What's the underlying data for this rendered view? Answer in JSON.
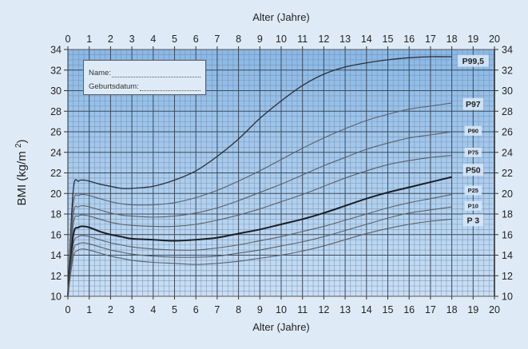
{
  "chart_data": {
    "type": "line",
    "title": "",
    "xlabel": "Alter (Jahre)",
    "ylabel": "BMI (kg/m 2)",
    "xlim": [
      0,
      20
    ],
    "ylim": [
      10,
      34
    ],
    "x_ticks": [
      0,
      1,
      2,
      3,
      4,
      5,
      6,
      7,
      8,
      9,
      10,
      11,
      12,
      13,
      14,
      15,
      16,
      17,
      18,
      19,
      20
    ],
    "y_ticks": [
      10,
      12,
      14,
      16,
      18,
      20,
      22,
      24,
      26,
      28,
      30,
      32,
      34
    ],
    "grid": true,
    "legend_position": "right (inline curve labels)",
    "x": [
      0,
      0.25,
      0.5,
      0.75,
      1,
      1.5,
      2,
      2.5,
      3,
      4,
      5,
      6,
      7,
      8,
      9,
      10,
      11,
      12,
      13,
      14,
      15,
      16,
      17,
      18
    ],
    "series": [
      {
        "name": "P99,5",
        "label_size": "large",
        "color": "#2a2f36",
        "width": 1.3,
        "values": [
          10.5,
          20.3,
          21.2,
          21.3,
          21.2,
          20.9,
          20.7,
          20.5,
          20.5,
          20.7,
          21.3,
          22.2,
          23.6,
          25.3,
          27.3,
          29.0,
          30.5,
          31.6,
          32.3,
          32.7,
          33.0,
          33.2,
          33.3,
          33.3
        ]
      },
      {
        "name": "P97",
        "label_size": "large",
        "color": "#5a6068",
        "width": 1.1,
        "values": [
          10.4,
          18.9,
          19.8,
          19.9,
          19.8,
          19.5,
          19.2,
          19.0,
          18.9,
          18.9,
          19.1,
          19.6,
          20.3,
          21.2,
          22.2,
          23.3,
          24.4,
          25.4,
          26.3,
          27.1,
          27.7,
          28.2,
          28.5,
          28.8
        ]
      },
      {
        "name": "P90",
        "label_size": "small",
        "color": "#5a6068",
        "width": 1.1,
        "values": [
          10.3,
          17.9,
          18.7,
          18.8,
          18.7,
          18.4,
          18.1,
          17.9,
          17.8,
          17.7,
          17.8,
          18.1,
          18.6,
          19.3,
          20.1,
          20.9,
          21.8,
          22.7,
          23.5,
          24.3,
          24.9,
          25.4,
          25.7,
          26.0
        ]
      },
      {
        "name": "P75",
        "label_size": "small",
        "color": "#5a6068",
        "width": 1.1,
        "values": [
          10.2,
          17.0,
          17.8,
          17.9,
          17.8,
          17.5,
          17.2,
          17.0,
          16.9,
          16.8,
          16.8,
          17.0,
          17.4,
          17.9,
          18.5,
          19.2,
          19.9,
          20.7,
          21.5,
          22.2,
          22.8,
          23.2,
          23.5,
          23.7
        ]
      },
      {
        "name": "P50",
        "label_size": "large",
        "color": "#1a1d22",
        "width": 2.0,
        "values": [
          10.1,
          15.9,
          16.7,
          16.8,
          16.7,
          16.3,
          16.0,
          15.8,
          15.6,
          15.5,
          15.4,
          15.5,
          15.7,
          16.1,
          16.5,
          17.0,
          17.5,
          18.1,
          18.8,
          19.5,
          20.1,
          20.6,
          21.1,
          21.6
        ]
      },
      {
        "name": "P25",
        "label_size": "small",
        "color": "#5a6068",
        "width": 1.1,
        "values": [
          10.0,
          15.0,
          15.8,
          15.9,
          15.8,
          15.5,
          15.2,
          15.0,
          14.8,
          14.6,
          14.5,
          14.5,
          14.7,
          15.0,
          15.4,
          15.8,
          16.3,
          16.8,
          17.4,
          18.0,
          18.6,
          19.1,
          19.5,
          19.9
        ]
      },
      {
        "name": "P10",
        "label_size": "small",
        "color": "#5a6068",
        "width": 1.1,
        "values": [
          10.0,
          14.4,
          15.1,
          15.2,
          15.1,
          14.8,
          14.5,
          14.3,
          14.1,
          13.9,
          13.8,
          13.8,
          13.9,
          14.2,
          14.5,
          14.9,
          15.3,
          15.8,
          16.4,
          17.0,
          17.6,
          18.1,
          18.4,
          18.7
        ]
      },
      {
        "name": "P 3",
        "label_size": "large",
        "color": "#5a6068",
        "width": 1.1,
        "values": [
          10.0,
          13.8,
          14.5,
          14.6,
          14.5,
          14.2,
          13.9,
          13.7,
          13.5,
          13.3,
          13.2,
          13.1,
          13.2,
          13.4,
          13.7,
          14.0,
          14.4,
          14.9,
          15.5,
          16.1,
          16.6,
          17.0,
          17.3,
          17.5
        ]
      }
    ],
    "label_positions": {
      "P99,5": 32.9,
      "P97": 28.7,
      "P90": 26.1,
      "P75": 24.0,
      "P50": 22.3,
      "P25": 20.3,
      "P10": 18.8,
      "P 3": 17.4
    }
  },
  "form_box": {
    "name_label": "Name:",
    "birthdate_label": "Geburtsdatum:"
  },
  "colors": {
    "page_bg": "#deebf7",
    "plot_top": "#8ab8e6",
    "plot_bottom": "#c8def3",
    "major_grid": "#3d4a5a",
    "minor_grid": "#6f8aa5"
  }
}
